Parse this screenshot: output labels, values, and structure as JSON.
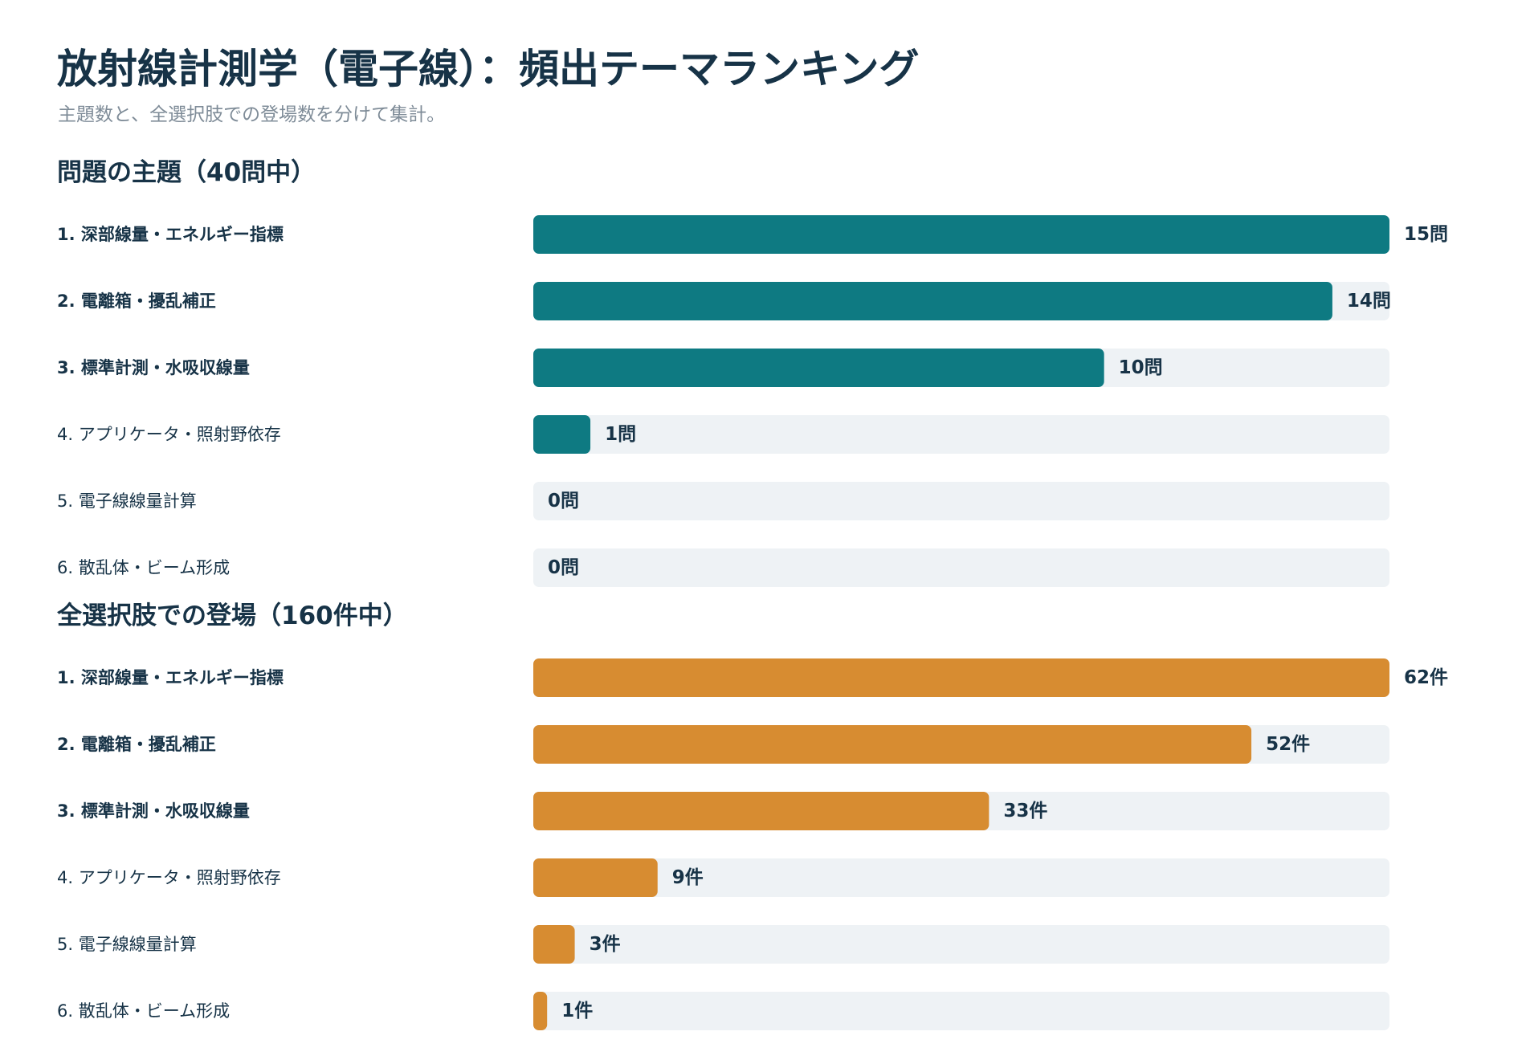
{
  "header": {
    "title": "放射線計測学（電子線）：頻出テーマランキング",
    "subtitle": "主題数と、全選択肢での登場数を分けて集計。"
  },
  "colors": {
    "track": "#eef2f5",
    "text": "#173347",
    "subtext": "#7f8c98"
  },
  "chart_data": [
    {
      "type": "bar",
      "orientation": "horizontal",
      "title": "問題の主題（40問中）",
      "categories": [
        "深部線量・エネルギー指標",
        "電離箱・擾乱補正",
        "標準計測・水吸収線量",
        "アプリケータ・照射野依存",
        "電子線線量計算",
        "散乱体・ビーム形成"
      ],
      "values": [
        15,
        14,
        10,
        1,
        0,
        0
      ],
      "unit": "問",
      "xlim": [
        0,
        15
      ],
      "color": "#0e7a82",
      "grid": false
    },
    {
      "type": "bar",
      "orientation": "horizontal",
      "title": "全選択肢での登場（160件中）",
      "categories": [
        "深部線量・エネルギー指標",
        "電離箱・擾乱補正",
        "標準計測・水吸収線量",
        "アプリケータ・照射野依存",
        "電子線線量計算",
        "散乱体・ビーム形成"
      ],
      "values": [
        62,
        52,
        33,
        9,
        3,
        1
      ],
      "unit": "件",
      "xlim": [
        0,
        62
      ],
      "color": "#d78c31",
      "grid": false
    }
  ]
}
